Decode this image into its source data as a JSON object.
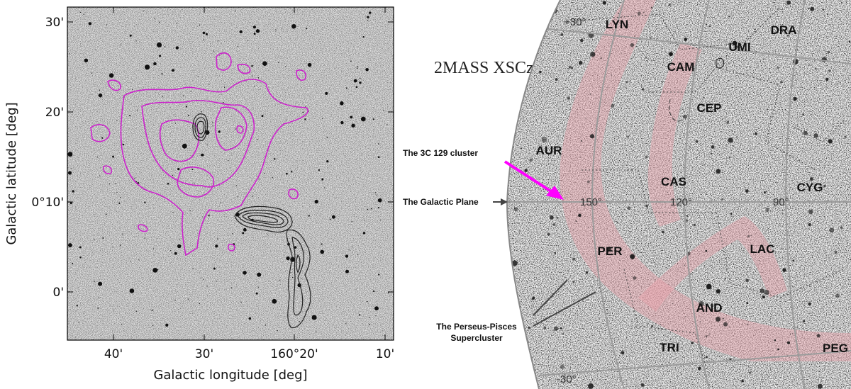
{
  "left_panel": {
    "xlabel": "Galactic longitude [deg]",
    "ylabel": "Galactic latitude [deg]",
    "x_ticks": [
      "40'",
      "30'",
      "160°20'",
      "10'"
    ],
    "y_ticks": [
      "30'",
      "20'",
      "0°10'",
      "0'"
    ],
    "contour_colors": {
      "purple": "#cc22cc",
      "black": "#222222"
    }
  },
  "right_panel": {
    "title": "2MASS XSCz",
    "constellations": [
      "LYN",
      "DRA",
      "UMI",
      "CAM",
      "CEP",
      "AUR",
      "CAS",
      "CYG",
      "PER",
      "LAC",
      "AND",
      "TRI",
      "PEG"
    ],
    "grid_labels": [
      "+30°",
      "150°",
      "120°",
      "90°",
      "-30°"
    ],
    "annotations": {
      "cluster": "The 3C 129 cluster",
      "plane": "The Galactic Plane",
      "supercluster_line1": "The Perseus-Pisces",
      "supercluster_line2": "Supercluster"
    },
    "colors": {
      "arrow": "#ff00ff",
      "band": "#e8a0a8"
    }
  }
}
